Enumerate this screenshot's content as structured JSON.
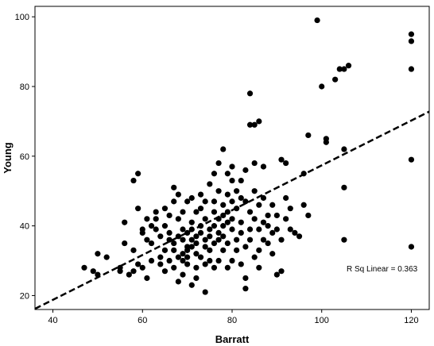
{
  "chart_data": {
    "type": "scatter",
    "xlabel": "Barratt",
    "ylabel": "Young",
    "xlim": [
      36,
      124
    ],
    "ylim": [
      16,
      103
    ],
    "xticks": [
      40,
      60,
      80,
      100,
      120
    ],
    "yticks": [
      20,
      40,
      60,
      80,
      100
    ],
    "grid": false,
    "annotation": "R Sq Linear = 0.363",
    "fit_line": {
      "x": [
        36,
        124
      ],
      "y": [
        16.2,
        72.8
      ]
    },
    "points": [
      [
        47,
        28
      ],
      [
        49,
        27
      ],
      [
        50,
        32
      ],
      [
        50,
        26
      ],
      [
        52,
        31
      ],
      [
        55,
        27
      ],
      [
        55,
        28
      ],
      [
        56,
        41
      ],
      [
        56,
        35
      ],
      [
        57,
        26
      ],
      [
        58,
        27
      ],
      [
        58,
        33
      ],
      [
        58,
        53
      ],
      [
        59,
        45
      ],
      [
        59,
        55
      ],
      [
        59,
        29
      ],
      [
        60,
        28
      ],
      [
        60,
        39
      ],
      [
        60,
        38
      ],
      [
        61,
        42
      ],
      [
        61,
        36
      ],
      [
        61,
        25
      ],
      [
        62,
        35
      ],
      [
        62,
        40
      ],
      [
        62,
        30
      ],
      [
        63,
        44
      ],
      [
        63,
        39
      ],
      [
        63,
        42
      ],
      [
        64,
        31
      ],
      [
        64,
        37
      ],
      [
        64,
        29
      ],
      [
        65,
        45
      ],
      [
        65,
        40
      ],
      [
        65,
        33
      ],
      [
        65,
        27
      ],
      [
        66,
        30
      ],
      [
        66,
        36
      ],
      [
        66,
        43
      ],
      [
        66,
        38
      ],
      [
        67,
        51
      ],
      [
        67,
        47
      ],
      [
        67,
        33
      ],
      [
        67,
        28
      ],
      [
        67,
        35
      ],
      [
        68,
        24
      ],
      [
        68,
        37
      ],
      [
        68,
        42
      ],
      [
        68,
        31
      ],
      [
        68,
        49
      ],
      [
        69,
        30
      ],
      [
        69,
        36
      ],
      [
        69,
        39
      ],
      [
        69,
        26
      ],
      [
        69,
        44
      ],
      [
        69,
        32
      ],
      [
        70,
        33
      ],
      [
        70,
        29
      ],
      [
        70,
        47
      ],
      [
        70,
        38
      ],
      [
        70,
        34
      ],
      [
        70,
        31
      ],
      [
        71,
        41
      ],
      [
        71,
        36
      ],
      [
        71,
        23
      ],
      [
        71,
        48
      ],
      [
        71,
        34
      ],
      [
        71,
        39
      ],
      [
        72,
        37
      ],
      [
        72,
        44
      ],
      [
        72,
        32
      ],
      [
        72,
        28
      ],
      [
        72,
        25
      ],
      [
        72,
        35
      ],
      [
        73,
        45
      ],
      [
        73,
        31
      ],
      [
        73,
        38
      ],
      [
        73,
        40
      ],
      [
        73,
        49
      ],
      [
        74,
        34
      ],
      [
        74,
        36
      ],
      [
        74,
        21
      ],
      [
        74,
        42
      ],
      [
        74,
        29
      ],
      [
        74,
        47
      ],
      [
        75,
        39
      ],
      [
        75,
        33
      ],
      [
        75,
        30
      ],
      [
        75,
        52
      ],
      [
        75,
        37
      ],
      [
        76,
        44
      ],
      [
        76,
        40
      ],
      [
        76,
        35
      ],
      [
        76,
        28
      ],
      [
        76,
        55
      ],
      [
        76,
        47
      ],
      [
        77,
        30
      ],
      [
        77,
        42
      ],
      [
        77,
        38
      ],
      [
        77,
        58
      ],
      [
        77,
        36
      ],
      [
        77,
        50
      ],
      [
        78,
        40
      ],
      [
        78,
        46
      ],
      [
        78,
        62
      ],
      [
        78,
        33
      ],
      [
        78,
        37
      ],
      [
        78,
        43
      ],
      [
        79,
        28
      ],
      [
        79,
        49
      ],
      [
        79,
        55
      ],
      [
        79,
        41
      ],
      [
        79,
        35
      ],
      [
        79,
        44
      ],
      [
        80,
        57
      ],
      [
        80,
        39
      ],
      [
        80,
        47
      ],
      [
        80,
        30
      ],
      [
        80,
        53
      ],
      [
        80,
        42
      ],
      [
        81,
        45
      ],
      [
        81,
        36
      ],
      [
        81,
        50
      ],
      [
        81,
        33
      ],
      [
        82,
        41
      ],
      [
        82,
        38
      ],
      [
        82,
        48
      ],
      [
        82,
        29
      ],
      [
        82,
        53
      ],
      [
        83,
        34
      ],
      [
        83,
        22
      ],
      [
        83,
        25
      ],
      [
        83,
        47
      ],
      [
        83,
        56
      ],
      [
        84,
        69
      ],
      [
        84,
        39
      ],
      [
        84,
        44
      ],
      [
        84,
        36
      ],
      [
        85,
        69
      ],
      [
        85,
        58
      ],
      [
        85,
        50
      ],
      [
        85,
        42
      ],
      [
        85,
        31
      ],
      [
        86,
        46
      ],
      [
        86,
        39
      ],
      [
        86,
        33
      ],
      [
        86,
        28
      ],
      [
        87,
        57
      ],
      [
        87,
        41
      ],
      [
        87,
        48
      ],
      [
        87,
        36
      ],
      [
        88,
        43
      ],
      [
        88,
        40
      ],
      [
        88,
        35
      ],
      [
        89,
        46
      ],
      [
        89,
        38
      ],
      [
        89,
        32
      ],
      [
        90,
        26
      ],
      [
        90,
        43
      ],
      [
        90,
        39
      ],
      [
        91,
        59
      ],
      [
        91,
        27
      ],
      [
        91,
        36
      ],
      [
        92,
        48
      ],
      [
        92,
        42
      ],
      [
        92,
        58
      ],
      [
        93,
        39
      ],
      [
        93,
        45
      ],
      [
        94,
        38
      ],
      [
        95,
        37
      ],
      [
        96,
        46
      ],
      [
        96,
        55
      ],
      [
        97,
        43
      ],
      [
        97,
        66
      ],
      [
        84,
        78
      ],
      [
        86,
        70
      ],
      [
        99,
        99
      ],
      [
        100,
        80
      ],
      [
        101,
        64
      ],
      [
        101,
        65
      ],
      [
        103,
        82
      ],
      [
        104,
        85
      ],
      [
        105,
        85
      ],
      [
        106,
        86
      ],
      [
        105,
        62
      ],
      [
        105,
        51
      ],
      [
        105,
        36
      ],
      [
        120,
        95
      ],
      [
        120,
        93
      ],
      [
        120,
        85
      ],
      [
        120,
        59
      ],
      [
        120,
        34
      ]
    ]
  }
}
